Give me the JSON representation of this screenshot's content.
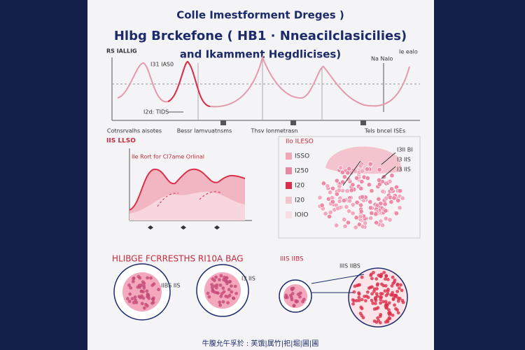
{
  "header": {
    "title_lines": [
      "Colle Imestforment Dreges )",
      "Hlbg Brckefone ( HB1 · Nneacilclasicilies)",
      "and Ikamment Hegdlicises)"
    ]
  },
  "top_chart": {
    "axis_label": "RS IALLIG",
    "labels": [
      "Na Nalo",
      "Ie ealo"
    ],
    "annotations": [
      "I31 IAS0",
      "I2d: TIDS"
    ],
    "x_labels": [
      "Cotnsrvalhs aisotes",
      "Bessr lamvuatnsms",
      "Thsv Ionmetrasn",
      "Tels bncel ISEs"
    ]
  },
  "left_panel": {
    "heading": "IIS LLSO",
    "caption": "IIe Rort for Cl7ame Orlinal"
  },
  "right_panel": {
    "legend": [
      "IIo ILESO",
      "ISSO",
      "I250",
      "I20",
      "I20",
      "IOIO"
    ],
    "callouts": [
      "I3II BI",
      "I3 IIS",
      "I3 IIS"
    ]
  },
  "bottom": {
    "heading": "HLIBGE FCRRESTHS RI10A BAG",
    "subheading": "IIIS IIBS",
    "callouts": [
      "IIIS IIBS",
      "IIBS IIS",
      "I3 IIS"
    ],
    "footer": "牛腹允午孚於 : 芙饿|属竹|祀|堀|圃|圃"
  }
}
